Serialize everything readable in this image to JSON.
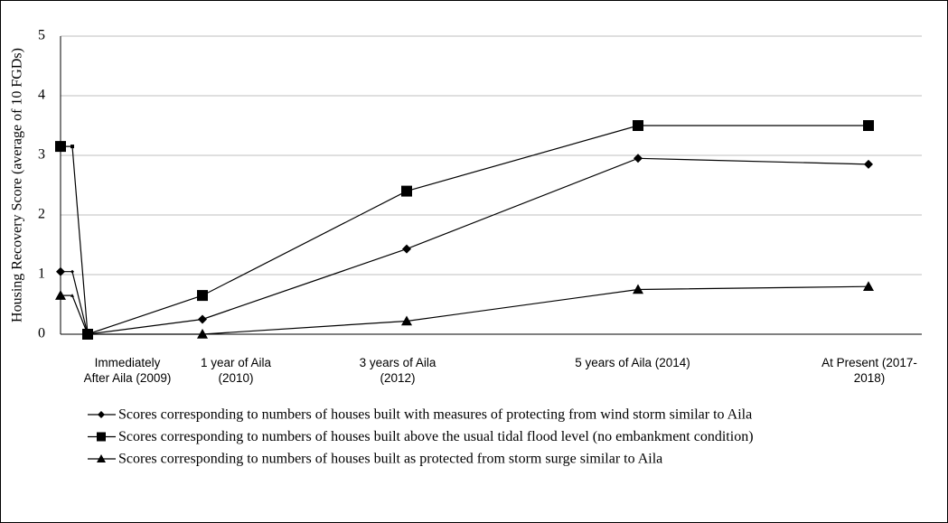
{
  "chart_data": {
    "type": "line",
    "ylabel": "Housing Recovery Score (average of 10 FGDs)",
    "categories": [
      null,
      null,
      "Immediately After Aila (2009)",
      "1 year of Aila (2010)",
      "3 years of Aila (2012)",
      "5 years of Aila (2014)",
      "At Present (2017-2018)"
    ],
    "series": [
      {
        "name": "Scores corresponding to numbers of houses built with measures of protecting from wind storm similar to Aila",
        "color": "#000000",
        "marker": "diamond",
        "values": [
          1.05,
          1.05,
          0,
          0.25,
          1.43,
          2.95,
          2.85
        ]
      },
      {
        "name": "Scores corresponding to numbers of houses built above the usual tidal flood level (no embankment condition)",
        "color": "#000000",
        "marker": "square",
        "values": [
          3.15,
          3.15,
          0,
          0.65,
          2.4,
          3.5,
          3.5
        ]
      },
      {
        "name": "Scores corresponding to numbers of houses built as protected from storm surge similar to Aila",
        "color": "#000000",
        "marker": "triangle",
        "values": [
          0.65,
          0.65,
          0,
          0,
          0.22,
          0.75,
          0.8
        ]
      }
    ],
    "ylim": [
      0,
      5
    ],
    "yticks": [
      0,
      1,
      2,
      3,
      4,
      5
    ],
    "grid": true,
    "legend": "bottom"
  }
}
